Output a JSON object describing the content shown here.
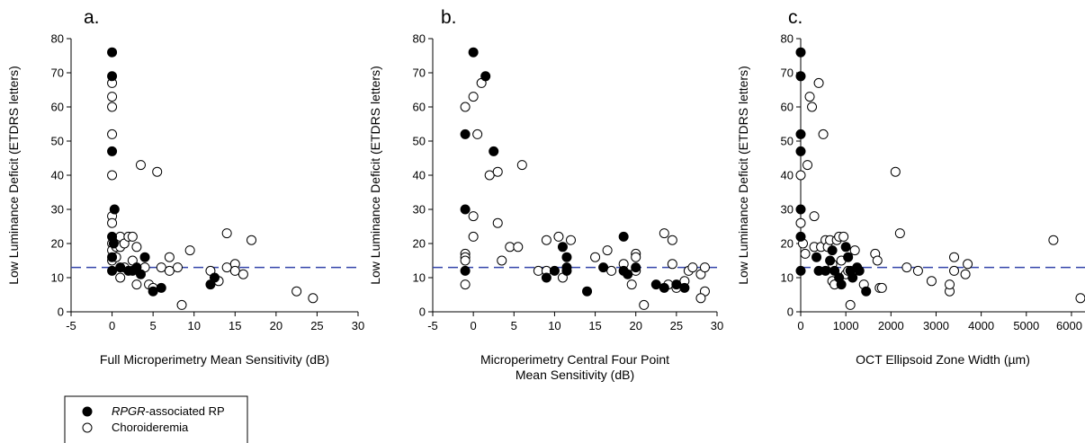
{
  "legend": {
    "items": [
      {
        "label_italic": "RPGR",
        "label_rest": "-associated RP",
        "fill": "#000000"
      },
      {
        "label_italic": "",
        "label_rest": "Choroideremia",
        "fill": "#ffffff"
      }
    ]
  },
  "chart_data": [
    {
      "type": "scatter",
      "panel": "a.",
      "xlabel": [
        "Full Microperimetry Mean Sensitivity (dB)"
      ],
      "ylabel": "Low Luminance Deficit (ETDRS letters)",
      "xlim": [
        -5,
        30
      ],
      "ylim": [
        0,
        80
      ],
      "xticks": [
        -5,
        0,
        5,
        10,
        15,
        20,
        25,
        30
      ],
      "yticks": [
        0,
        10,
        20,
        30,
        40,
        50,
        60,
        70,
        80
      ],
      "reference_line": 13,
      "series": [
        {
          "name": "RPGR-associated RP",
          "fill": "#000000",
          "points": [
            [
              0,
              76
            ],
            [
              0,
              69
            ],
            [
              0,
              47
            ],
            [
              0.3,
              30
            ],
            [
              0,
              22
            ],
            [
              0.2,
              20
            ],
            [
              0,
              16
            ],
            [
              0,
              12
            ],
            [
              1,
              13
            ],
            [
              2,
              12
            ],
            [
              2.5,
              12
            ],
            [
              3,
              13
            ],
            [
              3.5,
              11
            ],
            [
              4,
              16
            ],
            [
              5,
              6
            ],
            [
              6,
              7
            ],
            [
              12,
              8
            ],
            [
              12.5,
              10
            ]
          ]
        },
        {
          "name": "Choroideremia",
          "fill": "#ffffff",
          "points": [
            [
              0,
              67
            ],
            [
              0,
              63
            ],
            [
              0,
              60
            ],
            [
              0,
              52
            ],
            [
              0,
              40
            ],
            [
              0,
              28
            ],
            [
              0,
              26
            ],
            [
              0,
              20
            ],
            [
              0,
              18
            ],
            [
              0,
              15
            ],
            [
              0.5,
              19
            ],
            [
              0.5,
              16
            ],
            [
              1,
              22
            ],
            [
              1,
              19
            ],
            [
              1,
              10
            ],
            [
              1.5,
              20
            ],
            [
              1.5,
              13
            ],
            [
              2,
              22
            ],
            [
              2.5,
              22
            ],
            [
              2.5,
              15
            ],
            [
              3,
              19
            ],
            [
              3,
              8
            ],
            [
              3.5,
              43
            ],
            [
              4,
              13
            ],
            [
              4.5,
              8
            ],
            [
              5,
              7
            ],
            [
              5.5,
              41
            ],
            [
              6,
              13
            ],
            [
              7,
              16
            ],
            [
              7,
              12
            ],
            [
              8,
              13
            ],
            [
              8.5,
              2
            ],
            [
              9.5,
              18
            ],
            [
              12,
              12
            ],
            [
              13,
              9
            ],
            [
              14,
              23
            ],
            [
              14,
              13
            ],
            [
              15,
              14
            ],
            [
              15,
              12
            ],
            [
              16,
              11
            ],
            [
              17,
              21
            ],
            [
              22.5,
              6
            ],
            [
              24.5,
              4
            ]
          ]
        }
      ]
    },
    {
      "type": "scatter",
      "panel": "b.",
      "xlabel": [
        "Microperimetry Central Four Point",
        "Mean Sensitivity (dB)"
      ],
      "ylabel": "Low Luminance Deficit (ETDRS letters)",
      "xlim": [
        -5,
        30
      ],
      "ylim": [
        0,
        80
      ],
      "xticks": [
        -5,
        0,
        5,
        10,
        15,
        20,
        25,
        30
      ],
      "yticks": [
        0,
        10,
        20,
        30,
        40,
        50,
        60,
        70,
        80
      ],
      "reference_line": 13,
      "series": [
        {
          "name": "RPGR-associated RP",
          "fill": "#000000",
          "points": [
            [
              0,
              76
            ],
            [
              1.5,
              69
            ],
            [
              -1,
              52
            ],
            [
              2.5,
              47
            ],
            [
              -1,
              30
            ],
            [
              -1,
              12
            ],
            [
              9,
              10
            ],
            [
              10,
              12
            ],
            [
              11,
              19
            ],
            [
              11.5,
              16
            ],
            [
              11.5,
              13
            ],
            [
              11.5,
              12
            ],
            [
              14,
              6
            ],
            [
              16,
              13
            ],
            [
              18.5,
              22
            ],
            [
              18.5,
              12
            ],
            [
              19,
              11
            ],
            [
              20,
              13
            ],
            [
              22.5,
              8
            ],
            [
              23.5,
              7
            ],
            [
              25,
              8
            ],
            [
              26,
              7
            ]
          ]
        },
        {
          "name": "Choroideremia",
          "fill": "#ffffff",
          "points": [
            [
              -1,
              60
            ],
            [
              0,
              63
            ],
            [
              1,
              67
            ],
            [
              0.5,
              52
            ],
            [
              0,
              28
            ],
            [
              0,
              22
            ],
            [
              -1,
              17
            ],
            [
              -1,
              16
            ],
            [
              -1,
              15
            ],
            [
              -1,
              8
            ],
            [
              2,
              40
            ],
            [
              3,
              41
            ],
            [
              3,
              26
            ],
            [
              3.5,
              15
            ],
            [
              4.5,
              19
            ],
            [
              5.5,
              19
            ],
            [
              6,
              43
            ],
            [
              8,
              12
            ],
            [
              9,
              21
            ],
            [
              9,
              12
            ],
            [
              10.5,
              22
            ],
            [
              11,
              10
            ],
            [
              12,
              21
            ],
            [
              15,
              16
            ],
            [
              16.5,
              18
            ],
            [
              17,
              12
            ],
            [
              18.5,
              14
            ],
            [
              19.5,
              8
            ],
            [
              20,
              17
            ],
            [
              20,
              16
            ],
            [
              20,
              12
            ],
            [
              21,
              2
            ],
            [
              23.5,
              23
            ],
            [
              24.5,
              21
            ],
            [
              24.5,
              14
            ],
            [
              24,
              8
            ],
            [
              25,
              7
            ],
            [
              26,
              9
            ],
            [
              26.5,
              12
            ],
            [
              27,
              13
            ],
            [
              28,
              11
            ],
            [
              28.5,
              13
            ],
            [
              28.5,
              6
            ],
            [
              28,
              4
            ]
          ]
        }
      ]
    },
    {
      "type": "scatter",
      "panel": "c.",
      "xlabel": [
        "OCT Ellipsoid Zone Width (µm)"
      ],
      "ylabel": "Low Luminance Deficit (ETDRS letters)",
      "xlim": [
        0,
        6300
      ],
      "ylim": [
        0,
        80
      ],
      "xticks": [
        0,
        1000,
        2000,
        3000,
        4000,
        5000,
        6000
      ],
      "yticks": [
        0,
        10,
        20,
        30,
        40,
        50,
        60,
        70,
        80
      ],
      "reference_line": 13,
      "series": [
        {
          "name": "RPGR-associated RP",
          "fill": "#000000",
          "points": [
            [
              0,
              76
            ],
            [
              0,
              69
            ],
            [
              0,
              52
            ],
            [
              0,
              47
            ],
            [
              0,
              30
            ],
            [
              0,
              22
            ],
            [
              0,
              12
            ],
            [
              350,
              16
            ],
            [
              400,
              12
            ],
            [
              550,
              12
            ],
            [
              650,
              15
            ],
            [
              700,
              18
            ],
            [
              750,
              12
            ],
            [
              850,
              10
            ],
            [
              900,
              8
            ],
            [
              1000,
              19
            ],
            [
              1050,
              16
            ],
            [
              1100,
              12
            ],
            [
              1150,
              10
            ],
            [
              1250,
              13
            ],
            [
              1300,
              12
            ],
            [
              1450,
              6
            ]
          ]
        },
        {
          "name": "Choroideremia",
          "fill": "#ffffff",
          "points": [
            [
              0,
              40
            ],
            [
              0,
              26
            ],
            [
              50,
              20
            ],
            [
              100,
              17
            ],
            [
              150,
              43
            ],
            [
              200,
              63
            ],
            [
              250,
              60
            ],
            [
              300,
              28
            ],
            [
              300,
              19
            ],
            [
              400,
              67
            ],
            [
              450,
              19
            ],
            [
              500,
              52
            ],
            [
              550,
              21
            ],
            [
              600,
              19
            ],
            [
              650,
              21
            ],
            [
              700,
              14
            ],
            [
              700,
              9
            ],
            [
              750,
              8
            ],
            [
              800,
              21
            ],
            [
              850,
              22
            ],
            [
              900,
              15
            ],
            [
              950,
              22
            ],
            [
              1000,
              11
            ],
            [
              1050,
              12
            ],
            [
              1100,
              2
            ],
            [
              1200,
              18
            ],
            [
              1400,
              8
            ],
            [
              1650,
              17
            ],
            [
              1700,
              15
            ],
            [
              1750,
              7
            ],
            [
              1800,
              7
            ],
            [
              2100,
              41
            ],
            [
              2200,
              23
            ],
            [
              2350,
              13
            ],
            [
              2600,
              12
            ],
            [
              2900,
              9
            ],
            [
              3300,
              6
            ],
            [
              3300,
              8
            ],
            [
              3400,
              12
            ],
            [
              3400,
              16
            ],
            [
              3650,
              11
            ],
            [
              3700,
              14
            ],
            [
              5600,
              21
            ],
            [
              6200,
              4
            ]
          ]
        }
      ]
    }
  ]
}
